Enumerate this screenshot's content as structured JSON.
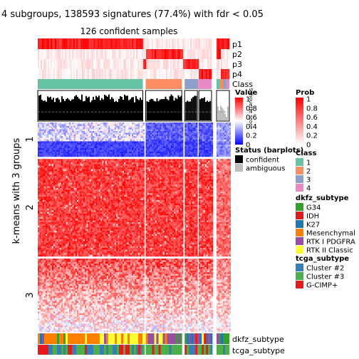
{
  "chart_data": {
    "type": "heatmap",
    "title": "4 subgroups, 138593 signatures (77.4%) with fdr < 0.05",
    "subtitle": "126 confident samples",
    "ylabel": "k-means with 3 groups",
    "row_groups": [
      "1",
      "2",
      "3"
    ],
    "row_group_fraction": [
      0.165,
      0.475,
      0.36
    ],
    "column_groups": [
      "1",
      "2",
      "3",
      "4"
    ],
    "column_group_fraction": [
      0.625,
      0.215,
      0.16,
      0.18
    ],
    "annotation_rows": [
      "p1",
      "p2",
      "p3",
      "p4",
      "Class"
    ],
    "barplot_label": "Silhouette score",
    "bottom_annotations": [
      "dkfz_subtype",
      "tcga_subtype"
    ],
    "value_legend": {
      "title": "Value",
      "ticks": [
        "1",
        "0.8",
        "0.6",
        "0.4",
        "0.2",
        "0"
      ]
    },
    "prob_legend": {
      "title": "Prob",
      "ticks": [
        "1",
        "0.8",
        "0.6",
        "0.4",
        "0.2",
        "0"
      ]
    },
    "status_legend": {
      "title": "Status (barplots)",
      "items": [
        {
          "label": "confident",
          "color": "#000000"
        },
        {
          "label": "ambiguous",
          "color": "#bebebe"
        }
      ]
    },
    "class_legend": {
      "title": "Class",
      "items": [
        {
          "label": "1",
          "color": "#66c2a5"
        },
        {
          "label": "2",
          "color": "#fc8d62"
        },
        {
          "label": "3",
          "color": "#8da0cb"
        },
        {
          "label": "4",
          "color": "#e78ac3"
        }
      ]
    },
    "dkfz_legend": {
      "title": "dkfz_subtype",
      "items": [
        {
          "label": "G34",
          "color": "#33a02c"
        },
        {
          "label": "IDH",
          "color": "#e31a1c"
        },
        {
          "label": "K27",
          "color": "#1f78b4"
        },
        {
          "label": "Mesenchymal",
          "color": "#ff7f00"
        },
        {
          "label": "RTK I PDGFRA",
          "color": "#984ea3"
        },
        {
          "label": "RTK II Classic",
          "color": "#ffff33"
        }
      ]
    },
    "tcga_legend": {
      "title": "tcga_subtype",
      "items": [
        {
          "label": "Cluster #2",
          "color": "#377eb8"
        },
        {
          "label": "Cluster #3",
          "color": "#4daf4a"
        },
        {
          "label": "G-CIMP+",
          "color": "#e41a1c"
        }
      ]
    }
  }
}
